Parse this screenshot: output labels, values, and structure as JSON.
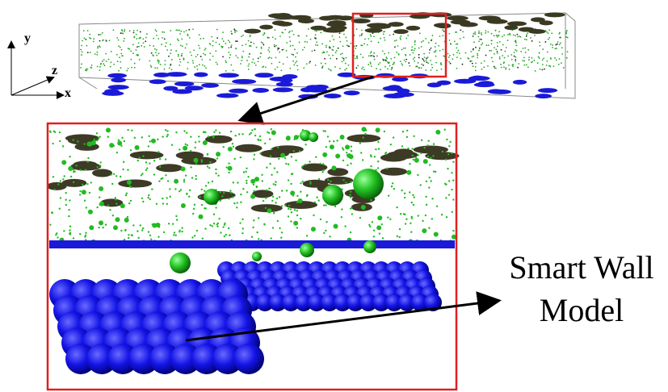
{
  "axes": {
    "y": "y",
    "z": "z",
    "x": "x"
  },
  "callout": {
    "line1": "Smart Wall",
    "line2": "Model"
  }
}
